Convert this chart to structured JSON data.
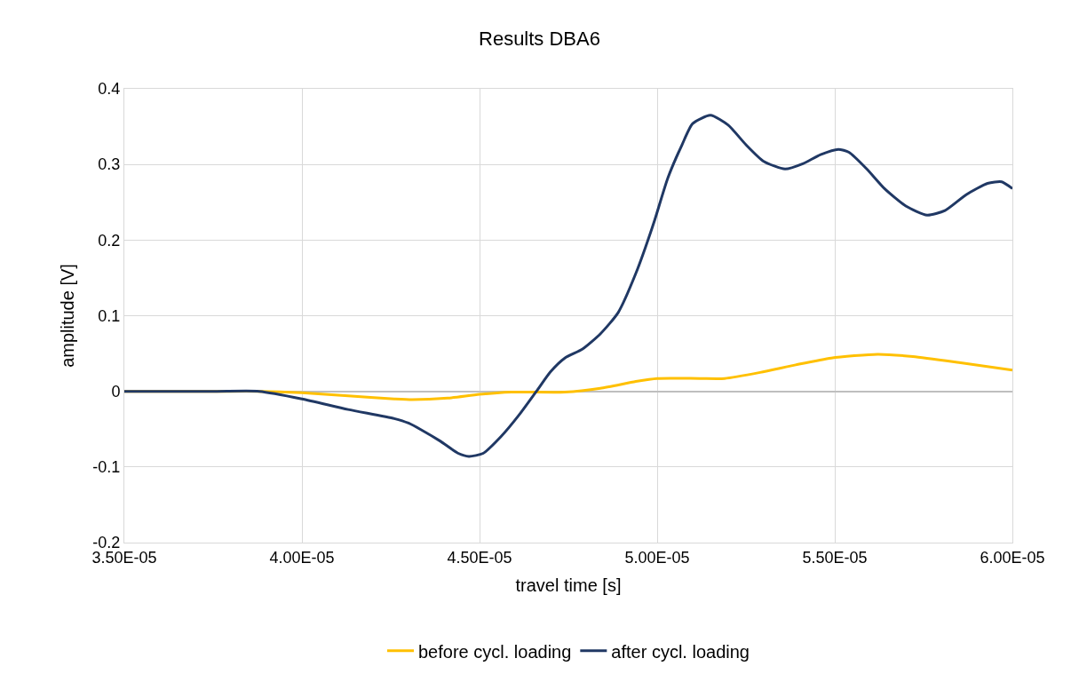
{
  "chart_data": {
    "type": "line",
    "title": "Results DBA6",
    "xlabel": "travel time [s]",
    "ylabel": "amplitude [V]",
    "xlim": [
      3.5e-05,
      6e-05
    ],
    "xticks": [
      {
        "value": 3.5e-05,
        "label": "3.50E-05"
      },
      {
        "value": 4e-05,
        "label": "4.00E-05"
      },
      {
        "value": 4.5e-05,
        "label": "4.50E-05"
      },
      {
        "value": 5e-05,
        "label": "5.00E-05"
      },
      {
        "value": 5.5e-05,
        "label": "5.50E-05"
      },
      {
        "value": 6e-05,
        "label": "6.00E-05"
      }
    ],
    "ylim": [
      -0.2,
      0.4
    ],
    "yticks": [
      -0.2,
      -0.1,
      0,
      0.1,
      0.2,
      0.3,
      0.4
    ],
    "grid": true,
    "legend": "bottom",
    "marker": "none",
    "line_style": "solid",
    "series": [
      {
        "name": "before cycl. loading",
        "color": "#ffc000",
        "x": [
          3.5e-05,
          3.76e-05,
          3.88e-05,
          4e-05,
          4.13e-05,
          4.26e-05,
          4.31e-05,
          4.41e-05,
          4.5e-05,
          4.59e-05,
          4.74e-05,
          4.84e-05,
          4.94e-05,
          5e-05,
          5.12e-05,
          5.19e-05,
          5.29e-05,
          5.39e-05,
          5.49e-05,
          5.62e-05,
          5.72e-05,
          5.85e-05,
          6e-05
        ],
        "values": [
          0,
          0,
          0,
          -0.002,
          -0.006,
          -0.01,
          -0.011,
          -0.009,
          -0.004,
          -0.001,
          -0.001,
          0.004,
          0.013,
          0.017,
          0.017,
          0.017,
          0.025,
          0.035,
          0.044,
          0.049,
          0.046,
          0.038,
          0.028
        ]
      },
      {
        "name": "after cycl. loading",
        "color": "#203864",
        "x": [
          3.5e-05,
          3.76e-05,
          3.88e-05,
          4e-05,
          4.13e-05,
          4.26e-05,
          4.3e-05,
          4.34e-05,
          4.39e-05,
          4.44e-05,
          4.47e-05,
          4.51e-05,
          4.56e-05,
          4.61e-05,
          4.66e-05,
          4.7e-05,
          4.74e-05,
          4.79e-05,
          4.84e-05,
          4.89e-05,
          4.94e-05,
          4.99e-05,
          5.03e-05,
          5.07e-05,
          5.1e-05,
          5.15e-05,
          5.2e-05,
          5.25e-05,
          5.3e-05,
          5.36e-05,
          5.41e-05,
          5.46e-05,
          5.51e-05,
          5.54e-05,
          5.59e-05,
          5.64e-05,
          5.7e-05,
          5.76e-05,
          5.81e-05,
          5.87e-05,
          5.93e-05,
          5.97e-05,
          6e-05
        ],
        "values": [
          0,
          0,
          0,
          -0.01,
          -0.024,
          -0.036,
          -0.042,
          -0.052,
          -0.066,
          -0.082,
          -0.086,
          -0.082,
          -0.06,
          -0.032,
          0,
          0.026,
          0.044,
          0.056,
          0.076,
          0.104,
          0.156,
          0.222,
          0.282,
          0.326,
          0.354,
          0.365,
          0.352,
          0.326,
          0.304,
          0.294,
          0.301,
          0.313,
          0.32,
          0.316,
          0.294,
          0.268,
          0.245,
          0.233,
          0.239,
          0.26,
          0.275,
          0.277,
          0.268
        ]
      }
    ]
  }
}
